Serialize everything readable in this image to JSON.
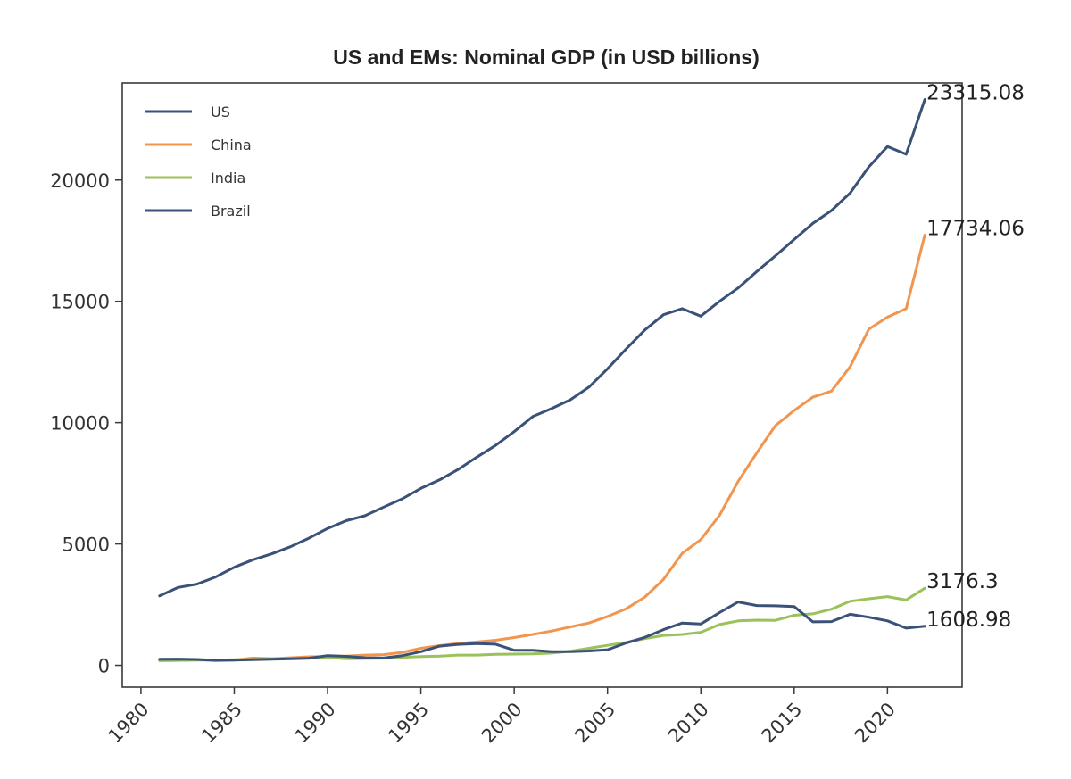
{
  "chart_data": {
    "type": "line",
    "title": "US and EMs: Nominal GDP (in USD billions)",
    "xlabel": "",
    "ylabel": "",
    "xlim": [
      1979,
      2024
    ],
    "ylim": [
      -900,
      24000
    ],
    "x_ticks": [
      1980,
      1985,
      1990,
      1995,
      2000,
      2005,
      2010,
      2015,
      2020
    ],
    "y_ticks": [
      0,
      5000,
      10000,
      15000,
      20000
    ],
    "legend_position": "top-left",
    "grid": false,
    "x": [
      1981,
      1982,
      1983,
      1984,
      1985,
      1986,
      1987,
      1988,
      1989,
      1990,
      1991,
      1992,
      1993,
      1994,
      1995,
      1996,
      1997,
      1998,
      1999,
      2000,
      2001,
      2002,
      2003,
      2004,
      2005,
      2006,
      2007,
      2008,
      2009,
      2010,
      2011,
      2012,
      2013,
      2014,
      2015,
      2016,
      2017,
      2018,
      2019,
      2020,
      2021,
      2022
    ],
    "series": [
      {
        "name": "US",
        "color": "#3a5178",
        "values": [
          2860,
          3210,
          3345,
          3640,
          4040,
          4350,
          4590,
          4880,
          5240,
          5640,
          5960,
          6160,
          6520,
          6860,
          7290,
          7640,
          8070,
          8580,
          9060,
          9630,
          10250,
          10580,
          10940,
          11460,
          12220,
          13040,
          13820,
          14450,
          14700,
          14390,
          15000,
          15550,
          16230,
          16880,
          17550,
          18210,
          18740,
          19460,
          20540,
          21380,
          21060,
          23315.08
        ],
        "end_label": "23315.08"
      },
      {
        "name": "China",
        "color": "#f2954e",
        "values": [
          200,
          205,
          230,
          210,
          210,
          300,
          275,
          310,
          350,
          360,
          380,
          420,
          440,
          530,
          700,
          810,
          900,
          960,
          1030,
          1140,
          1270,
          1410,
          1580,
          1740,
          2010,
          2330,
          2810,
          3540,
          4610,
          5180,
          6180,
          7580,
          8760,
          9880,
          10500,
          11050,
          11300,
          12300,
          13850,
          14350,
          14700,
          17734.06
        ],
        "end_label": "17734.06"
      },
      {
        "name": "India",
        "color": "#9bc15a",
        "values": [
          190,
          200,
          210,
          210,
          230,
          240,
          260,
          280,
          290,
          320,
          270,
          280,
          290,
          330,
          360,
          380,
          420,
          420,
          450,
          460,
          470,
          500,
          580,
          700,
          820,
          940,
          1100,
          1230,
          1270,
          1360,
          1680,
          1830,
          1860,
          1850,
          2060,
          2120,
          2310,
          2640,
          2740,
          2830,
          2690,
          3176.3
        ],
        "end_label": "3176.3"
      },
      {
        "name": "Brazil",
        "color": "#3a5178",
        "values": [
          250,
          255,
          240,
          200,
          210,
          230,
          250,
          270,
          290,
          400,
          370,
          310,
          300,
          400,
          560,
          790,
          860,
          890,
          870,
          620,
          620,
          560,
          560,
          590,
          640,
          920,
          1150,
          1470,
          1740,
          1700,
          2170,
          2610,
          2460,
          2450,
          2420,
          1790,
          1800,
          2100,
          1980,
          1830,
          1530,
          1608.98
        ],
        "end_label": "1608.98"
      }
    ]
  }
}
